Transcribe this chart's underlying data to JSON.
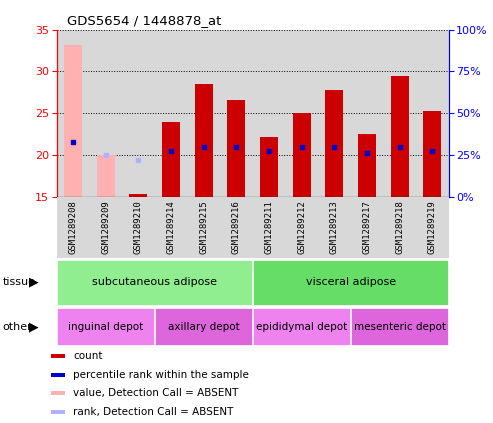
{
  "title": "GDS5654 / 1448878_at",
  "samples": [
    "GSM1289208",
    "GSM1289209",
    "GSM1289210",
    "GSM1289214",
    "GSM1289215",
    "GSM1289216",
    "GSM1289211",
    "GSM1289212",
    "GSM1289213",
    "GSM1289217",
    "GSM1289218",
    "GSM1289219"
  ],
  "count_values": [
    33.2,
    20.0,
    15.3,
    24.0,
    28.5,
    26.6,
    22.2,
    25.0,
    27.8,
    22.5,
    29.4,
    25.3
  ],
  "count_absent": [
    true,
    true,
    false,
    false,
    false,
    false,
    false,
    false,
    false,
    false,
    false,
    false
  ],
  "rank_values": [
    21.5,
    20.0,
    19.4,
    20.5,
    21.0,
    21.0,
    20.5,
    21.0,
    21.0,
    20.2,
    21.0,
    20.5
  ],
  "rank_absent": [
    false,
    true,
    true,
    false,
    false,
    false,
    false,
    false,
    false,
    false,
    false,
    false
  ],
  "ylim_left": [
    15,
    35
  ],
  "ylim_right": [
    0,
    100
  ],
  "yticks_left": [
    15,
    20,
    25,
    30,
    35
  ],
  "yticks_right": [
    0,
    25,
    50,
    75,
    100
  ],
  "color_bar_present": "#cc0000",
  "color_bar_absent": "#ffb0b0",
  "color_rank_present": "#0000cc",
  "color_rank_absent": "#b0b0ff",
  "tissue_groups": [
    {
      "label": "subcutaneous adipose",
      "start": 0,
      "end": 5,
      "color": "#90ee90"
    },
    {
      "label": "visceral adipose",
      "start": 6,
      "end": 11,
      "color": "#66dd66"
    }
  ],
  "other_groups": [
    {
      "label": "inguinal depot",
      "start": 0,
      "end": 2,
      "color": "#ee82ee"
    },
    {
      "label": "axillary depot",
      "start": 3,
      "end": 5,
      "color": "#dd66dd"
    },
    {
      "label": "epididymal depot",
      "start": 6,
      "end": 8,
      "color": "#ee82ee"
    },
    {
      "label": "mesenteric depot",
      "start": 9,
      "end": 11,
      "color": "#dd66dd"
    }
  ],
  "legend_items": [
    {
      "label": "count",
      "color": "#cc0000"
    },
    {
      "label": "percentile rank within the sample",
      "color": "#0000cc"
    },
    {
      "label": "value, Detection Call = ABSENT",
      "color": "#ffb0b0"
    },
    {
      "label": "rank, Detection Call = ABSENT",
      "color": "#b0b0ff"
    }
  ],
  "bar_width": 0.55,
  "plot_bg": "#d8d8d8",
  "fig_bg": "#ffffff"
}
